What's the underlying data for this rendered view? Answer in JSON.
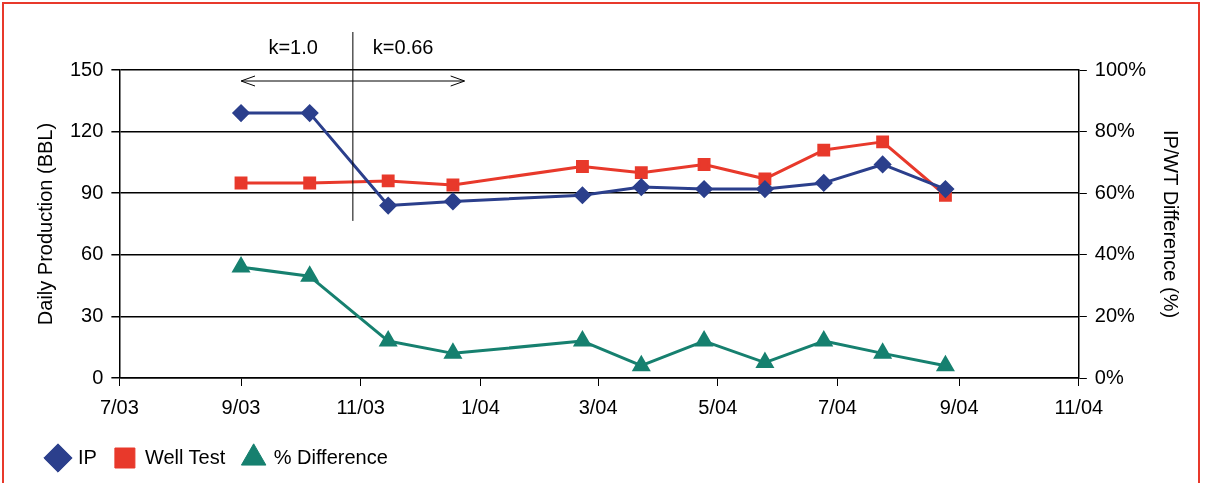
{
  "chart_data": {
    "type": "line",
    "xlabel": null,
    "ylabel": "Daily Production (BBL)",
    "y2label": "IP/WT Difference (%)",
    "x": [
      "2003-09-01",
      "2003-10-06",
      "2003-11-15",
      "2003-12-18",
      "2004-02-22",
      "2004-03-23",
      "2004-04-24",
      "2004-05-25",
      "2004-06-24",
      "2004-07-24",
      "2004-08-25"
    ],
    "series": [
      {
        "name": "IP",
        "color": "#2b3f8c",
        "marker": "diamond",
        "values": [
          129,
          129,
          84,
          86,
          89,
          93,
          92,
          92,
          95,
          104,
          92
        ]
      },
      {
        "name": "Well Test",
        "color": "#e8392b",
        "marker": "square",
        "values": [
          95,
          95,
          96,
          94,
          103,
          100,
          104,
          97,
          111,
          115,
          89
        ]
      },
      {
        "name": "% Difference",
        "color": "#16806f",
        "marker": "triangle",
        "axis": "y2",
        "values": [
          36,
          33,
          12,
          8,
          12,
          4,
          12,
          5,
          12,
          8,
          4
        ]
      }
    ],
    "xlim": [
      "2003-07",
      "2004-11"
    ],
    "xticks": [
      {
        "value": "2003-07",
        "label": "7/03"
      },
      {
        "value": "2003-09",
        "label": "9/03"
      },
      {
        "value": "2003-11",
        "label": "11/03"
      },
      {
        "value": "2004-01",
        "label": "1/04"
      },
      {
        "value": "2004-03",
        "label": "3/04"
      },
      {
        "value": "2004-05",
        "label": "5/04"
      },
      {
        "value": "2004-07",
        "label": "7/04"
      },
      {
        "value": "2004-09",
        "label": "9/04"
      },
      {
        "value": "2004-11",
        "label": "11/04"
      }
    ],
    "ylim": [
      0,
      150
    ],
    "yticks": [
      0,
      30,
      60,
      90,
      120,
      150
    ],
    "y2lim": [
      0,
      100
    ],
    "y2ticks": [
      {
        "value": 0,
        "label": "0%"
      },
      {
        "value": 20,
        "label": "20%"
      },
      {
        "value": 40,
        "label": "40%"
      },
      {
        "value": 60,
        "label": "60%"
      },
      {
        "value": 80,
        "label": "80%"
      },
      {
        "value": 100,
        "label": "100%"
      }
    ],
    "grid": "y",
    "legend": "bottom",
    "line_style": "solid",
    "ref_lines": [
      {
        "axis": "x",
        "value": "2003-10-28",
        "label": null,
        "color": "#000000"
      }
    ],
    "annotations": [
      "k=1.0",
      "k=0.66"
    ]
  }
}
